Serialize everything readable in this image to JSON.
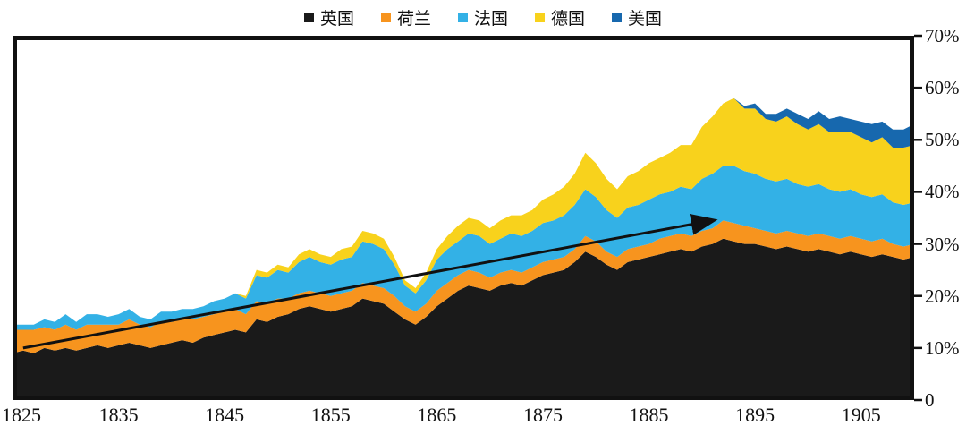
{
  "chart_data": {
    "type": "area",
    "stacked": true,
    "title": "",
    "xlabel": "",
    "ylabel": "",
    "ylim": [
      0,
      70
    ],
    "grid": false,
    "legend_position": "top-center",
    "x": [
      1825,
      1826,
      1827,
      1828,
      1829,
      1830,
      1831,
      1832,
      1833,
      1834,
      1835,
      1836,
      1837,
      1838,
      1839,
      1840,
      1841,
      1842,
      1843,
      1844,
      1845,
      1846,
      1847,
      1848,
      1849,
      1850,
      1851,
      1852,
      1853,
      1854,
      1855,
      1856,
      1857,
      1858,
      1859,
      1860,
      1861,
      1862,
      1863,
      1864,
      1865,
      1866,
      1867,
      1868,
      1869,
      1870,
      1871,
      1872,
      1873,
      1874,
      1875,
      1876,
      1877,
      1878,
      1879,
      1880,
      1881,
      1882,
      1883,
      1884,
      1885,
      1886,
      1887,
      1888,
      1889,
      1890,
      1891,
      1892,
      1893,
      1894,
      1895,
      1896,
      1897,
      1898,
      1899,
      1900,
      1901,
      1902,
      1903,
      1904,
      1905,
      1906,
      1907,
      1908,
      1909,
      1910
    ],
    "x_ticks": [
      1825,
      1835,
      1845,
      1855,
      1865,
      1875,
      1885,
      1895,
      1905
    ],
    "y_tick_labels": [
      "0",
      "10%",
      "20%",
      "30%",
      "40%",
      "50%",
      "60%",
      "70%"
    ],
    "series": [
      {
        "name": "英国",
        "color": "#1a1a1a",
        "values": [
          9,
          9.5,
          9,
          10,
          9.5,
          10,
          9.5,
          10,
          10.5,
          10,
          10.5,
          11,
          10.5,
          10,
          10.5,
          11,
          11.5,
          11,
          12,
          12.5,
          13,
          13.5,
          13,
          15.5,
          15,
          16,
          16.5,
          17.5,
          18,
          17.5,
          17,
          17.5,
          18,
          19.5,
          19,
          18.5,
          17,
          15.5,
          14.5,
          16,
          18,
          19.5,
          21,
          22,
          21.5,
          21,
          22,
          22.5,
          22,
          23,
          24,
          24.5,
          25,
          26.5,
          28.5,
          27.5,
          26,
          25,
          26.5,
          27,
          27.5,
          28,
          28.5,
          29,
          28.5,
          29.5,
          30,
          31,
          30.5,
          30,
          30,
          29.5,
          29,
          29.5,
          29,
          28.5,
          29,
          28.5,
          28,
          28.5,
          28,
          27.5,
          28,
          27.5,
          27,
          27.5
        ]
      },
      {
        "name": "荷兰",
        "color": "#F7941E",
        "values": [
          4.5,
          4,
          4.5,
          4,
          4,
          4.5,
          4,
          4.5,
          4,
          4.5,
          4,
          4.5,
          4,
          4,
          4.5,
          4,
          4,
          4.5,
          4,
          4,
          4,
          4,
          3.5,
          3.5,
          3.5,
          3.5,
          3,
          3,
          3,
          3,
          3,
          3,
          3,
          3,
          3,
          3,
          3,
          2.5,
          2.5,
          2.5,
          3,
          3,
          3,
          3,
          3,
          2.5,
          2.5,
          2.5,
          2.5,
          2.5,
          2.5,
          2.5,
          2.5,
          2.5,
          3,
          3,
          2.5,
          2.5,
          2.5,
          2.5,
          2.5,
          3,
          3,
          3,
          3,
          3,
          3,
          3.5,
          3.5,
          3.5,
          3,
          3,
          3,
          3,
          3,
          3,
          3,
          3,
          3,
          3,
          3,
          3,
          3,
          2.5,
          2.5,
          2.5
        ]
      },
      {
        "name": "法国",
        "color": "#33B1E6",
        "values": [
          1,
          1,
          1,
          1.5,
          1.5,
          2,
          1.5,
          2,
          2,
          1.5,
          2,
          2,
          1.5,
          1.5,
          2,
          2,
          2,
          2,
          2,
          2.5,
          2.5,
          3,
          3,
          5,
          5,
          5.5,
          5,
          6,
          6.5,
          6,
          6,
          6.5,
          6.5,
          8,
          8,
          7.5,
          6,
          4,
          3.5,
          4.5,
          6,
          6.5,
          6.5,
          7,
          7,
          6.5,
          6.5,
          7,
          7,
          7,
          7.5,
          7.5,
          8,
          8.5,
          9,
          8.5,
          8,
          7.5,
          8,
          8,
          8.5,
          8.5,
          8.5,
          9,
          9,
          10,
          10.5,
          10.5,
          11,
          10.5,
          10.5,
          10,
          10,
          10,
          9.5,
          9.5,
          9.5,
          9,
          9,
          9,
          8.5,
          8.5,
          8.5,
          8,
          8,
          8
        ]
      },
      {
        "name": "德国",
        "color": "#F8D21C",
        "values": [
          0,
          0,
          0,
          0,
          0,
          0,
          0,
          0,
          0,
          0,
          0,
          0,
          0,
          0,
          0,
          0,
          0,
          0,
          0,
          0,
          0,
          0,
          0.5,
          1,
          1,
          1,
          1,
          1.5,
          1.5,
          1.5,
          1.5,
          2,
          2,
          2,
          2,
          2,
          1.5,
          1,
          1,
          1.5,
          2,
          2.5,
          3,
          3,
          3,
          3,
          3.5,
          3.5,
          4,
          4,
          4.5,
          5,
          5.5,
          6,
          7,
          6.5,
          6,
          5.5,
          6,
          6.5,
          7,
          7,
          7.5,
          8,
          8.5,
          10,
          11,
          12,
          13,
          12,
          12.5,
          11.5,
          11.5,
          12,
          11.5,
          11,
          11.5,
          11,
          11.5,
          11,
          11,
          10.5,
          11,
          10.5,
          11,
          11
        ]
      },
      {
        "name": "美国",
        "color": "#1768AE",
        "values": [
          0,
          0,
          0,
          0,
          0,
          0,
          0,
          0,
          0,
          0,
          0,
          0,
          0,
          0,
          0,
          0,
          0,
          0,
          0,
          0,
          0,
          0,
          0,
          0,
          0,
          0,
          0,
          0,
          0,
          0,
          0,
          0,
          0,
          0,
          0,
          0,
          0,
          0,
          0,
          0,
          0,
          0,
          0,
          0,
          0,
          0,
          0,
          0,
          0,
          0,
          0,
          0,
          0,
          0,
          0,
          0,
          0,
          0,
          0,
          0,
          0,
          0,
          0,
          0,
          0,
          0,
          0,
          0,
          0,
          0.5,
          1,
          1,
          1.5,
          1.5,
          2,
          2,
          2.5,
          2.5,
          3,
          2.5,
          3,
          3.5,
          3,
          3.5,
          3.5,
          4
        ]
      }
    ],
    "annotation_arrow": {
      "x1": 1826,
      "y1": 10,
      "x2": 1891,
      "y2": 34.5,
      "color": "#111111"
    }
  },
  "frame": {
    "border_color": "#111111"
  }
}
